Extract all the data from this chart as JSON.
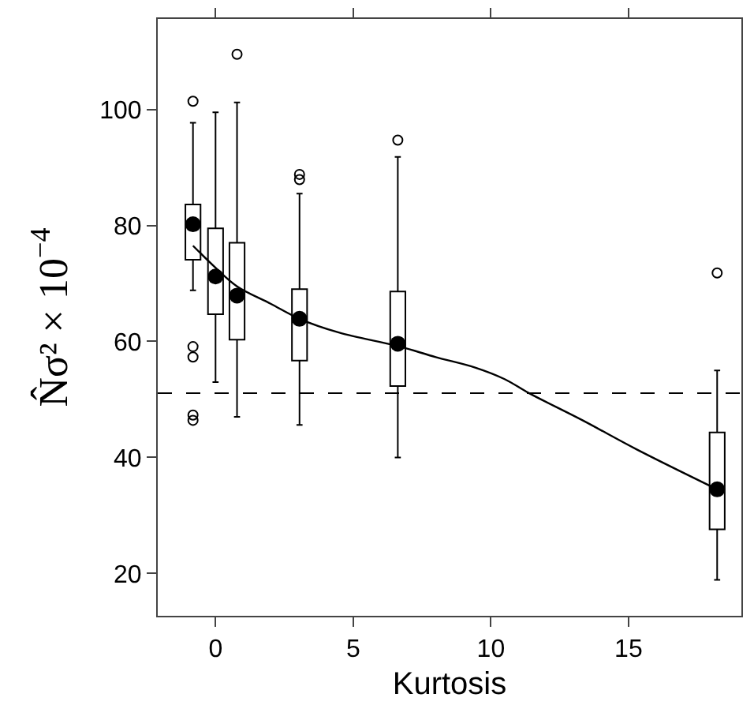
{
  "chart_data": {
    "type": "box",
    "xlabel": "Kurtosis",
    "ylabel": "N̂σ² × 10$^{−4}$",
    "xlim": [
      -2.1,
      19.1
    ],
    "ylim": [
      12.7,
      115.6
    ],
    "xticks": [
      0,
      5,
      10,
      15
    ],
    "yticks": [
      20,
      40,
      60,
      80,
      100
    ],
    "series": [
      {
        "color": "#000000",
        "x": [
          -0.82,
          0,
          0.78,
          3.05,
          6.62,
          18.22
        ],
        "boxes": [
          {
            "low": 68.8,
            "q1": 74.1,
            "median": 80.2,
            "q3": 83.6,
            "high": 97.7,
            "outliers": [
              101.4,
              59.1,
              57.3,
              47.3,
              46.4
            ]
          },
          {
            "low": 53.0,
            "q1": 64.7,
            "median": 71.2,
            "q3": 79.5,
            "high": 99.5
          },
          {
            "low": 47.0,
            "q1": 60.3,
            "median": 67.9,
            "q3": 77.0,
            "high": 101.2,
            "outliers": [
              109.5
            ]
          },
          {
            "low": 45.6,
            "q1": 56.7,
            "median": 63.9,
            "q3": 69.0,
            "high": 85.5,
            "outliers": [
              88.8,
              87.9
            ]
          },
          {
            "low": 40.0,
            "q1": 52.3,
            "median": 59.6,
            "q3": 68.6,
            "high": 91.8,
            "outliers": [
              94.7
            ]
          },
          {
            "low": 18.9,
            "q1": 27.6,
            "median": 34.5,
            "q3": 44.3,
            "high": 55.0,
            "outliers": [
              71.8
            ]
          }
        ]
      },
      {
        "type": "line",
        "color": "#000000",
        "line_style": "solid",
        "marker": "none",
        "x": [
          -0.82,
          0,
          0.78,
          2,
          3.05,
          4.5,
          6.62,
          8,
          9.43,
          10.5,
          11.38,
          13.33,
          15.29,
          18.22
        ],
        "values": [
          76.5,
          72.7,
          69.5,
          66.5,
          63.9,
          61.5,
          59.2,
          57.3,
          55.5,
          53.5,
          51.1,
          46.4,
          41.4,
          34.5
        ]
      }
    ],
    "ref_lines": [
      {
        "axis": "y",
        "value": 51.1,
        "color": "#000000",
        "line_style": "dashed"
      }
    ]
  }
}
